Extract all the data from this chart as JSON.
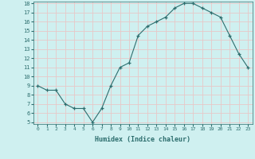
{
  "x": [
    0,
    1,
    2,
    3,
    4,
    5,
    6,
    7,
    8,
    9,
    10,
    11,
    12,
    13,
    14,
    15,
    16,
    17,
    18,
    19,
    20,
    21,
    22,
    23
  ],
  "y": [
    9.0,
    8.5,
    8.5,
    7.0,
    6.5,
    6.5,
    5.0,
    6.5,
    9.0,
    11.0,
    11.5,
    14.5,
    15.5,
    16.0,
    16.5,
    17.5,
    18.0,
    18.0,
    17.5,
    17.0,
    16.5,
    14.5,
    12.5,
    11.0
  ],
  "xlabel": "Humidex (Indice chaleur)",
  "ylim": [
    5,
    18
  ],
  "xlim": [
    -0.5,
    23.5
  ],
  "yticks": [
    5,
    6,
    7,
    8,
    9,
    10,
    11,
    12,
    13,
    14,
    15,
    16,
    17,
    18
  ],
  "xticks": [
    0,
    1,
    2,
    3,
    4,
    5,
    6,
    7,
    8,
    9,
    10,
    11,
    12,
    13,
    14,
    15,
    16,
    17,
    18,
    19,
    20,
    21,
    22,
    23
  ],
  "line_color": "#2d6e6e",
  "marker": "+",
  "bg_color": "#cff0f0",
  "grid_color": "#e8c8c8",
  "label_color": "#2d6e6e"
}
